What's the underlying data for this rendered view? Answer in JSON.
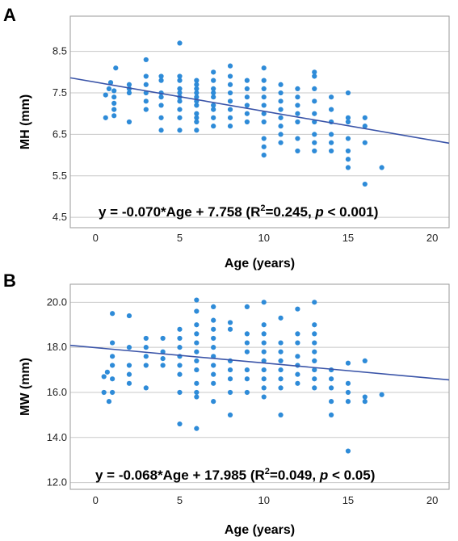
{
  "chart_data": [
    {
      "panel": "A",
      "type": "scatter",
      "xlabel": "Age (years)",
      "ylabel": "MH (mm)",
      "xlim": [
        -1.5,
        21
      ],
      "ylim": [
        4.25,
        9.35
      ],
      "xticks": [
        0,
        5,
        10,
        15,
        20
      ],
      "yticks": [
        4.5,
        5.5,
        6.5,
        7.5,
        8.5
      ],
      "xtick_labels": [
        "0",
        "5",
        "10",
        "15",
        "20"
      ],
      "ytick_labels": [
        "4.5",
        "5.5",
        "6.5",
        "7.5",
        "8.5"
      ],
      "grid": "horizontal",
      "point_color": "#2e8bd8",
      "line_color": "#3a54a8",
      "regression": {
        "slope": -0.07,
        "intercept": 7.758
      },
      "equation": {
        "prefix": "y = -0.070*Age + 7.758 (R",
        "sup": "2",
        "mid": "=0.245, ",
        "p": "p",
        "suffix": " < 0.001)"
      },
      "points": [
        [
          0.6,
          6.9
        ],
        [
          0.6,
          7.45
        ],
        [
          0.8,
          7.6
        ],
        [
          0.9,
          7.75
        ],
        [
          1.1,
          7.55
        ],
        [
          1.1,
          7.4
        ],
        [
          1.1,
          7.25
        ],
        [
          1.1,
          7.1
        ],
        [
          1.1,
          6.95
        ],
        [
          1.2,
          8.1
        ],
        [
          2.0,
          7.7
        ],
        [
          2.0,
          7.5
        ],
        [
          2.0,
          7.6
        ],
        [
          2.0,
          6.8
        ],
        [
          3.0,
          8.3
        ],
        [
          3.0,
          7.9
        ],
        [
          3.0,
          7.7
        ],
        [
          3.0,
          7.5
        ],
        [
          3.0,
          7.3
        ],
        [
          3.0,
          7.1
        ],
        [
          3.9,
          7.9
        ],
        [
          3.9,
          7.8
        ],
        [
          3.9,
          7.5
        ],
        [
          3.9,
          7.4
        ],
        [
          3.9,
          7.2
        ],
        [
          3.9,
          6.9
        ],
        [
          3.9,
          6.6
        ],
        [
          5.0,
          8.7
        ],
        [
          5.0,
          7.9
        ],
        [
          5.0,
          7.8
        ],
        [
          5.0,
          7.6
        ],
        [
          5.0,
          7.5
        ],
        [
          5.0,
          7.4
        ],
        [
          5.0,
          7.3
        ],
        [
          5.0,
          7.1
        ],
        [
          5.0,
          6.9
        ],
        [
          5.0,
          6.6
        ],
        [
          6.0,
          7.8
        ],
        [
          6.0,
          7.7
        ],
        [
          6.0,
          7.6
        ],
        [
          6.0,
          7.5
        ],
        [
          6.0,
          7.4
        ],
        [
          6.0,
          7.3
        ],
        [
          6.0,
          7.2
        ],
        [
          6.0,
          7.0
        ],
        [
          6.0,
          6.9
        ],
        [
          6.0,
          6.8
        ],
        [
          6.0,
          6.6
        ],
        [
          7.0,
          8.0
        ],
        [
          7.0,
          7.8
        ],
        [
          7.0,
          7.6
        ],
        [
          7.0,
          7.5
        ],
        [
          7.0,
          7.4
        ],
        [
          7.0,
          7.2
        ],
        [
          7.0,
          7.1
        ],
        [
          7.0,
          6.9
        ],
        [
          7.0,
          6.7
        ],
        [
          8.0,
          8.15
        ],
        [
          8.0,
          7.9
        ],
        [
          8.0,
          7.7
        ],
        [
          8.0,
          7.5
        ],
        [
          8.0,
          7.3
        ],
        [
          8.0,
          7.1
        ],
        [
          8.0,
          6.9
        ],
        [
          8.0,
          6.7
        ],
        [
          9.0,
          7.8
        ],
        [
          9.0,
          7.6
        ],
        [
          9.0,
          7.4
        ],
        [
          9.0,
          7.2
        ],
        [
          9.0,
          7.0
        ],
        [
          9.0,
          6.8
        ],
        [
          10.0,
          8.1
        ],
        [
          10.0,
          7.8
        ],
        [
          10.0,
          7.6
        ],
        [
          10.0,
          7.4
        ],
        [
          10.0,
          7.2
        ],
        [
          10.0,
          7.0
        ],
        [
          10.0,
          6.8
        ],
        [
          10.0,
          6.4
        ],
        [
          10.0,
          6.2
        ],
        [
          10.0,
          6.0
        ],
        [
          11.0,
          7.7
        ],
        [
          11.0,
          7.5
        ],
        [
          11.0,
          7.3
        ],
        [
          11.0,
          7.1
        ],
        [
          11.0,
          6.9
        ],
        [
          11.0,
          6.7
        ],
        [
          11.0,
          6.5
        ],
        [
          11.0,
          6.3
        ],
        [
          12.0,
          7.6
        ],
        [
          12.0,
          7.4
        ],
        [
          12.0,
          7.2
        ],
        [
          12.0,
          7.0
        ],
        [
          12.0,
          6.8
        ],
        [
          12.0,
          6.4
        ],
        [
          12.0,
          6.1
        ],
        [
          13.0,
          8.0
        ],
        [
          13.0,
          7.9
        ],
        [
          13.0,
          7.6
        ],
        [
          13.0,
          7.3
        ],
        [
          13.0,
          7.0
        ],
        [
          13.0,
          6.8
        ],
        [
          13.0,
          6.5
        ],
        [
          13.0,
          6.3
        ],
        [
          13.0,
          6.1
        ],
        [
          14.0,
          7.4
        ],
        [
          14.0,
          7.1
        ],
        [
          14.0,
          6.8
        ],
        [
          14.0,
          6.5
        ],
        [
          14.0,
          6.3
        ],
        [
          14.0,
          6.1
        ],
        [
          15.0,
          7.5
        ],
        [
          15.0,
          6.9
        ],
        [
          15.0,
          6.8
        ],
        [
          15.0,
          6.4
        ],
        [
          15.0,
          6.1
        ],
        [
          15.0,
          5.9
        ],
        [
          15.0,
          5.7
        ],
        [
          16.0,
          6.9
        ],
        [
          16.0,
          6.7
        ],
        [
          16.0,
          6.3
        ],
        [
          16.0,
          5.3
        ],
        [
          17.0,
          5.7
        ]
      ]
    },
    {
      "panel": "B",
      "type": "scatter",
      "xlabel": "Age (years)",
      "ylabel": "MW (mm)",
      "xlim": [
        -1.5,
        21
      ],
      "ylim": [
        11.7,
        20.8
      ],
      "xticks": [
        0,
        5,
        10,
        15,
        20
      ],
      "yticks": [
        12.0,
        14.0,
        16.0,
        18.0,
        20.0
      ],
      "xtick_labels": [
        "0",
        "5",
        "10",
        "15",
        "20"
      ],
      "ytick_labels": [
        "12.0",
        "14.0",
        "16.0",
        "18.0",
        "20.0"
      ],
      "grid": "horizontal",
      "point_color": "#2e8bd8",
      "line_color": "#3a54a8",
      "regression": {
        "slope": -0.068,
        "intercept": 17.985
      },
      "equation": {
        "prefix": "y = -0.068*Age + 17.985 (R",
        "sup": "2",
        "mid": "=0.049, ",
        "p": "p",
        "suffix": " < 0.05)"
      },
      "points": [
        [
          0.5,
          16.7
        ],
        [
          0.5,
          16.0
        ],
        [
          0.7,
          16.9
        ],
        [
          0.8,
          15.6
        ],
        [
          1.0,
          19.5
        ],
        [
          1.0,
          18.2
        ],
        [
          1.0,
          17.6
        ],
        [
          1.0,
          17.2
        ],
        [
          1.0,
          16.6
        ],
        [
          1.0,
          16.0
        ],
        [
          2.0,
          19.4
        ],
        [
          2.0,
          18.0
        ],
        [
          2.0,
          17.2
        ],
        [
          2.0,
          16.8
        ],
        [
          2.0,
          16.4
        ],
        [
          3.0,
          18.4
        ],
        [
          3.0,
          18.0
        ],
        [
          3.0,
          17.6
        ],
        [
          3.0,
          17.2
        ],
        [
          3.0,
          16.2
        ],
        [
          4.0,
          18.4
        ],
        [
          4.0,
          17.8
        ],
        [
          4.0,
          17.5
        ],
        [
          4.0,
          17.2
        ],
        [
          5.0,
          18.8
        ],
        [
          5.0,
          18.4
        ],
        [
          5.0,
          18.0
        ],
        [
          5.0,
          17.6
        ],
        [
          5.0,
          17.2
        ],
        [
          5.0,
          16.8
        ],
        [
          5.0,
          16.0
        ],
        [
          5.0,
          14.6
        ],
        [
          6.0,
          20.1
        ],
        [
          6.0,
          19.6
        ],
        [
          6.0,
          19.0
        ],
        [
          6.0,
          18.6
        ],
        [
          6.0,
          18.2
        ],
        [
          6.0,
          17.8
        ],
        [
          6.0,
          17.4
        ],
        [
          6.0,
          17.0
        ],
        [
          6.0,
          16.4
        ],
        [
          6.0,
          16.0
        ],
        [
          6.0,
          15.8
        ],
        [
          6.0,
          14.4
        ],
        [
          7.0,
          19.8
        ],
        [
          7.0,
          19.2
        ],
        [
          7.0,
          18.8
        ],
        [
          7.0,
          18.4
        ],
        [
          7.0,
          18.0
        ],
        [
          7.0,
          17.6
        ],
        [
          7.0,
          17.2
        ],
        [
          7.0,
          16.8
        ],
        [
          7.0,
          16.4
        ],
        [
          7.0,
          15.6
        ],
        [
          8.0,
          19.1
        ],
        [
          8.0,
          18.8
        ],
        [
          8.0,
          17.4
        ],
        [
          8.0,
          17.0
        ],
        [
          8.0,
          16.6
        ],
        [
          8.0,
          16.0
        ],
        [
          8.0,
          15.0
        ],
        [
          9.0,
          19.8
        ],
        [
          9.0,
          18.6
        ],
        [
          9.0,
          18.2
        ],
        [
          9.0,
          17.8
        ],
        [
          9.0,
          17.0
        ],
        [
          9.0,
          16.6
        ],
        [
          9.0,
          16.0
        ],
        [
          10.0,
          20.0
        ],
        [
          10.0,
          19.0
        ],
        [
          10.0,
          18.6
        ],
        [
          10.0,
          18.2
        ],
        [
          10.0,
          17.8
        ],
        [
          10.0,
          17.4
        ],
        [
          10.0,
          17.0
        ],
        [
          10.0,
          16.6
        ],
        [
          10.0,
          16.2
        ],
        [
          10.0,
          15.8
        ],
        [
          11.0,
          19.3
        ],
        [
          11.0,
          18.2
        ],
        [
          11.0,
          17.8
        ],
        [
          11.0,
          17.4
        ],
        [
          11.0,
          17.0
        ],
        [
          11.0,
          16.6
        ],
        [
          11.0,
          16.2
        ],
        [
          11.0,
          15.0
        ],
        [
          12.0,
          19.7
        ],
        [
          12.0,
          18.6
        ],
        [
          12.0,
          18.2
        ],
        [
          12.0,
          17.6
        ],
        [
          12.0,
          17.2
        ],
        [
          12.0,
          16.8
        ],
        [
          12.0,
          16.4
        ],
        [
          13.0,
          20.0
        ],
        [
          13.0,
          19.0
        ],
        [
          13.0,
          18.6
        ],
        [
          13.0,
          18.2
        ],
        [
          13.0,
          17.8
        ],
        [
          13.0,
          17.4
        ],
        [
          13.0,
          17.0
        ],
        [
          13.0,
          16.6
        ],
        [
          13.0,
          16.2
        ],
        [
          14.0,
          17.0
        ],
        [
          14.0,
          16.6
        ],
        [
          14.0,
          16.2
        ],
        [
          14.0,
          15.6
        ],
        [
          14.0,
          15.0
        ],
        [
          15.0,
          17.3
        ],
        [
          15.0,
          16.4
        ],
        [
          15.0,
          16.0
        ],
        [
          15.0,
          15.6
        ],
        [
          15.0,
          13.4
        ],
        [
          16.0,
          17.4
        ],
        [
          16.0,
          15.8
        ],
        [
          16.0,
          15.6
        ],
        [
          17.0,
          15.9
        ]
      ]
    }
  ]
}
